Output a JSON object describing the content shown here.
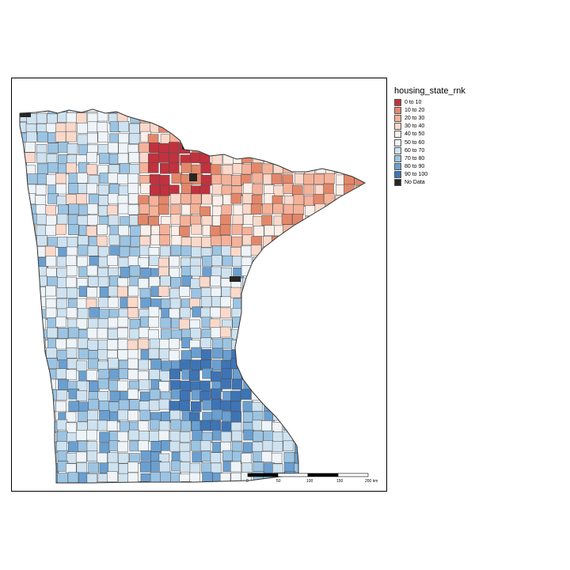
{
  "legend": {
    "title": "housing_state_rnk",
    "items": [
      {
        "label": "0 to 10",
        "color": "#c0323e"
      },
      {
        "label": "10 to 20",
        "color": "#e3876a"
      },
      {
        "label": "20 to 30",
        "color": "#f4b29a"
      },
      {
        "label": "30 to 40",
        "color": "#fad9cb"
      },
      {
        "label": "40 to 50",
        "color": "#fbefea"
      },
      {
        "label": "50 to 60",
        "color": "#eef4f8"
      },
      {
        "label": "60 to 70",
        "color": "#cfe2ef"
      },
      {
        "label": "70 to 80",
        "color": "#9cc4e2"
      },
      {
        "label": "80 to 90",
        "color": "#6a9fd0"
      },
      {
        "label": "90 to 100",
        "color": "#3e74b4"
      },
      {
        "label": "No Data",
        "color": "#262626"
      }
    ]
  },
  "scale_bar": {
    "ticks": [
      "0",
      "50",
      "100",
      "150",
      "200 km"
    ]
  },
  "map": {
    "region": "Minnesota",
    "boundary_color": "#4a4a4a"
  }
}
